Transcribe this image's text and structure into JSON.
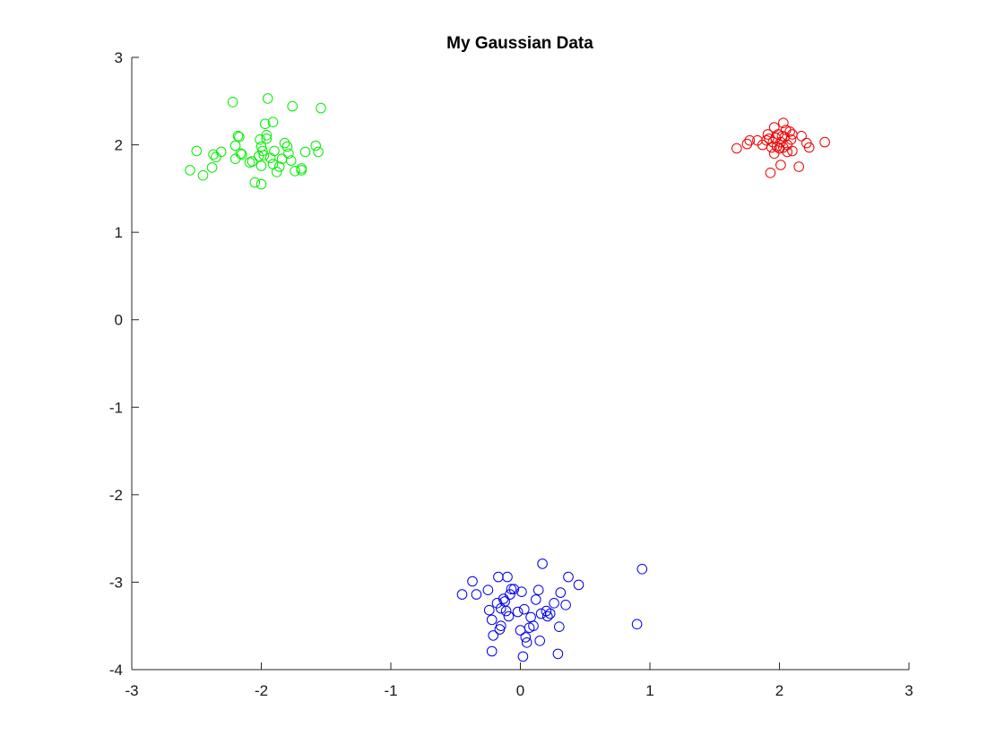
{
  "chart_data": {
    "type": "scatter",
    "title": "My Gaussian Data",
    "xlabel": "",
    "ylabel": "",
    "xlim": [
      -3,
      3
    ],
    "ylim": [
      -4,
      3
    ],
    "xticks": [
      -3,
      -2,
      -1,
      0,
      1,
      2,
      3
    ],
    "yticks": [
      3,
      2,
      1,
      0,
      -1,
      -2,
      -3,
      -4
    ],
    "xtick_labels": [
      "-3",
      "-2",
      "-1",
      "0",
      "1",
      "2",
      "3"
    ],
    "ytick_labels": [
      "3",
      "2",
      "1",
      "0",
      "-1",
      "-2",
      "-3",
      "-4"
    ],
    "grid": false,
    "legend": "none",
    "marker": "circle-open",
    "series": [
      {
        "color": "#00ee00",
        "points": [
          [
            -2.55,
            1.71
          ],
          [
            -2.5,
            1.93
          ],
          [
            -2.45,
            1.65
          ],
          [
            -2.38,
            1.74
          ],
          [
            -2.37,
            1.89
          ],
          [
            -2.35,
            1.86
          ],
          [
            -2.31,
            1.92
          ],
          [
            -2.22,
            2.49
          ],
          [
            -2.2,
            1.84
          ],
          [
            -2.2,
            1.99
          ],
          [
            -2.18,
            2.1
          ],
          [
            -2.17,
            2.09
          ],
          [
            -2.16,
            1.9
          ],
          [
            -2.15,
            1.89
          ],
          [
            -2.09,
            1.8
          ],
          [
            -2.07,
            1.81
          ],
          [
            -2.05,
            1.57
          ],
          [
            -2.02,
            1.87
          ],
          [
            -2.01,
            2.06
          ],
          [
            -2.0,
            1.98
          ],
          [
            -2.0,
            1.76
          ],
          [
            -2.0,
            1.55
          ],
          [
            -1.99,
            1.93
          ],
          [
            -1.98,
            1.88
          ],
          [
            -1.97,
            2.24
          ],
          [
            -1.96,
            2.07
          ],
          [
            -1.96,
            2.11
          ],
          [
            -1.95,
            2.53
          ],
          [
            -1.93,
            1.85
          ],
          [
            -1.91,
            2.26
          ],
          [
            -1.91,
            1.78
          ],
          [
            -1.9,
            1.93
          ],
          [
            -1.88,
            1.69
          ],
          [
            -1.86,
            1.75
          ],
          [
            -1.84,
            1.84
          ],
          [
            -1.82,
            2.02
          ],
          [
            -1.8,
            1.98
          ],
          [
            -1.79,
            1.9
          ],
          [
            -1.77,
            1.82
          ],
          [
            -1.76,
            2.44
          ],
          [
            -1.74,
            1.7
          ],
          [
            -1.69,
            1.73
          ],
          [
            -1.69,
            1.71
          ],
          [
            -1.66,
            1.92
          ],
          [
            -1.58,
            1.99
          ],
          [
            -1.56,
            1.92
          ],
          [
            -1.54,
            2.42
          ]
        ]
      },
      {
        "color": "#ee0000",
        "points": [
          [
            1.67,
            1.96
          ],
          [
            1.75,
            2.01
          ],
          [
            1.77,
            2.05
          ],
          [
            1.83,
            2.05
          ],
          [
            1.87,
            2.0
          ],
          [
            1.9,
            2.05
          ],
          [
            1.91,
            2.12
          ],
          [
            1.92,
            2.07
          ],
          [
            1.93,
            1.68
          ],
          [
            1.94,
            1.97
          ],
          [
            1.95,
            2.03
          ],
          [
            1.96,
            1.9
          ],
          [
            1.96,
            2.2
          ],
          [
            1.97,
            2.08
          ],
          [
            1.98,
            1.98
          ],
          [
            1.99,
            2.12
          ],
          [
            2.0,
            1.96
          ],
          [
            2.01,
            1.77
          ],
          [
            2.01,
            2.03
          ],
          [
            2.02,
            2.1
          ],
          [
            2.03,
            2.25
          ],
          [
            2.03,
            1.97
          ],
          [
            2.04,
            2.09
          ],
          [
            2.05,
            2.17
          ],
          [
            2.06,
            2.0
          ],
          [
            2.06,
            1.92
          ],
          [
            2.08,
            2.15
          ],
          [
            2.09,
            2.06
          ],
          [
            2.1,
            1.93
          ],
          [
            2.1,
            2.12
          ],
          [
            2.15,
            1.75
          ],
          [
            2.17,
            2.1
          ],
          [
            2.21,
            2.02
          ],
          [
            2.23,
            1.97
          ],
          [
            2.35,
            2.03
          ]
        ]
      },
      {
        "color": "#0000ee",
        "points": [
          [
            -0.45,
            -3.14
          ],
          [
            -0.37,
            -2.99
          ],
          [
            -0.34,
            -3.14
          ],
          [
            -0.25,
            -3.09
          ],
          [
            -0.24,
            -3.32
          ],
          [
            -0.22,
            -3.43
          ],
          [
            -0.22,
            -3.79
          ],
          [
            -0.21,
            -3.61
          ],
          [
            -0.18,
            -3.24
          ],
          [
            -0.17,
            -2.94
          ],
          [
            -0.16,
            -3.54
          ],
          [
            -0.15,
            -3.5
          ],
          [
            -0.15,
            -3.3
          ],
          [
            -0.13,
            -3.19
          ],
          [
            -0.12,
            -3.22
          ],
          [
            -0.11,
            -3.33
          ],
          [
            -0.1,
            -2.94
          ],
          [
            -0.09,
            -3.39
          ],
          [
            -0.08,
            -3.14
          ],
          [
            -0.07,
            -3.08
          ],
          [
            -0.05,
            -3.08
          ],
          [
            -0.02,
            -3.34
          ],
          [
            0.0,
            -3.55
          ],
          [
            0.01,
            -3.11
          ],
          [
            0.02,
            -3.85
          ],
          [
            0.03,
            -3.31
          ],
          [
            0.04,
            -3.63
          ],
          [
            0.05,
            -3.69
          ],
          [
            0.07,
            -3.52
          ],
          [
            0.08,
            -3.4
          ],
          [
            0.1,
            -3.5
          ],
          [
            0.12,
            -3.2
          ],
          [
            0.14,
            -3.09
          ],
          [
            0.15,
            -3.67
          ],
          [
            0.16,
            -3.36
          ],
          [
            0.17,
            -2.79
          ],
          [
            0.2,
            -3.33
          ],
          [
            0.21,
            -3.39
          ],
          [
            0.23,
            -3.36
          ],
          [
            0.26,
            -3.24
          ],
          [
            0.29,
            -3.82
          ],
          [
            0.3,
            -3.51
          ],
          [
            0.31,
            -3.12
          ],
          [
            0.35,
            -3.26
          ],
          [
            0.37,
            -2.94
          ],
          [
            0.45,
            -3.03
          ],
          [
            0.9,
            -3.48
          ],
          [
            0.94,
            -2.85
          ]
        ]
      }
    ]
  }
}
